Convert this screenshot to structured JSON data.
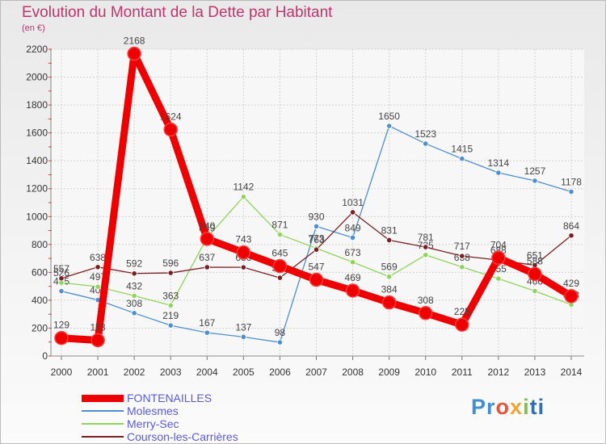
{
  "chart_data": {
    "type": "line",
    "title": "Evolution du Montant de la Dette par Habitant",
    "subtitle": "(en €)",
    "x": [
      "2000",
      "2001",
      "2002",
      "2003",
      "2004",
      "2005",
      "2006",
      "2007",
      "2008",
      "2009",
      "2010",
      "2011",
      "2012",
      "2013",
      "2014"
    ],
    "ylim": [
      0,
      2200
    ],
    "yticks": [
      0,
      200,
      400,
      600,
      800,
      1000,
      1200,
      1400,
      1600,
      1800,
      2000,
      2200
    ],
    "grid": true,
    "legend_position": "bottom-left",
    "series": [
      {
        "name": "FONTENAILLES",
        "color": "#ee0000",
        "emphasis": true,
        "values": [
          129,
          113,
          2168,
          1624,
          840,
          743,
          645,
          547,
          469,
          384,
          308,
          225,
          704,
          588,
          429
        ]
      },
      {
        "name": "Molesmes",
        "color": "#4f8fd0",
        "values": [
          465,
          402,
          308,
          219,
          167,
          137,
          98,
          930,
          849,
          1650,
          1523,
          1415,
          1314,
          1257,
          1178
        ]
      },
      {
        "name": "Merry-Sec",
        "color": "#8fd45b",
        "values": [
          526,
          497,
          432,
          363,
          849,
          1142,
          871,
          773,
          673,
          569,
          725,
          638,
          555,
          466,
          368
        ]
      },
      {
        "name": "Courson-les-Carrières",
        "color": "#7a1f24",
        "values": [
          557,
          638,
          592,
          596,
          637,
          636,
          561,
          763,
          1031,
          831,
          781,
          717,
          688,
          651,
          864
        ]
      }
    ]
  },
  "branding": {
    "logo_parts": [
      "Pr",
      "o",
      "x",
      "i",
      "ti"
    ],
    "logo_colors": [
      "#3f8fd2",
      "#e8543a",
      "#f2a532",
      "#7dc142",
      "#2f6fb5"
    ]
  }
}
